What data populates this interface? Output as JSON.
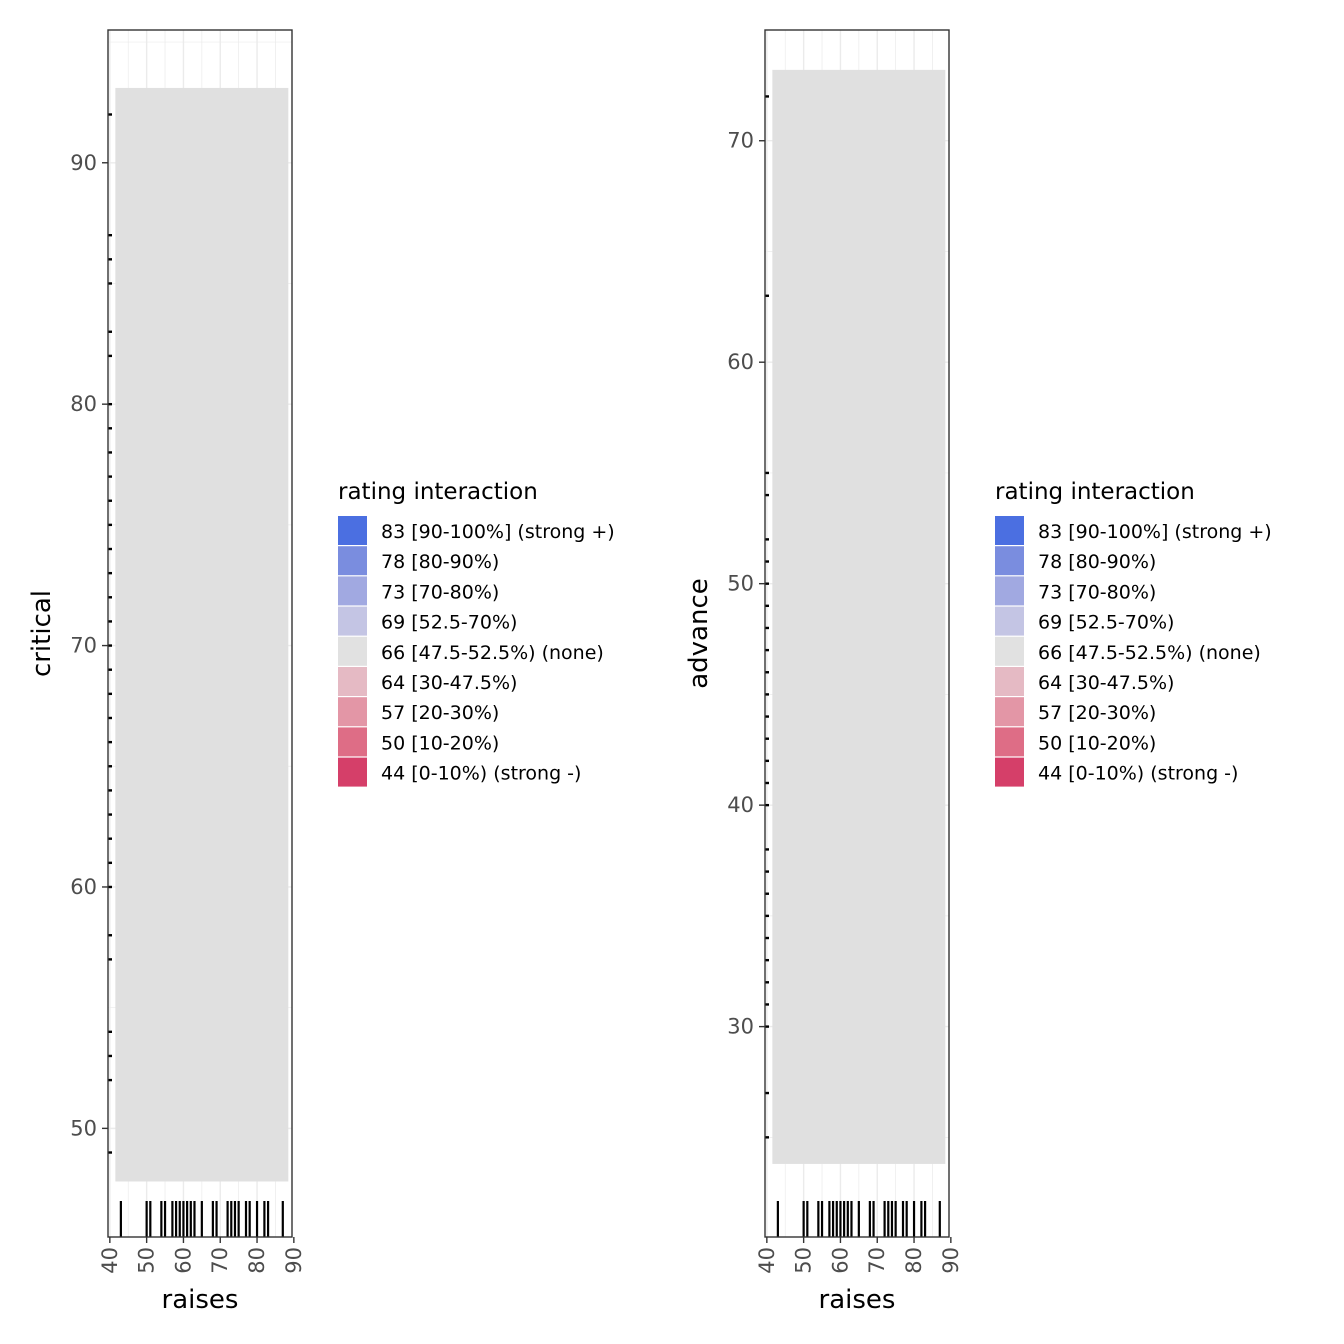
{
  "chart_data": [
    {
      "type": "heatmap",
      "xlabel": "raises",
      "ylabel": "critical",
      "xlim": [
        39.5,
        89.5
      ],
      "ylim": [
        45.5,
        95.5
      ],
      "xticks": [
        "40",
        "50",
        "60",
        "70",
        "80",
        "90"
      ],
      "yticks": [
        "50",
        "60",
        "70",
        "80",
        "90"
      ],
      "tile_x_range": [
        41.5,
        88.5
      ],
      "tile_y_range": [
        47.8,
        93.1
      ],
      "fill_value": 66,
      "fill_color": "#e0e0e0",
      "x_rug": [
        43,
        50,
        51,
        54,
        55,
        57,
        58,
        59,
        60,
        61,
        62,
        63,
        65,
        68,
        69,
        72,
        73,
        74,
        75,
        77,
        78,
        80,
        82,
        83,
        87
      ],
      "y_rug": [
        49,
        52,
        53,
        54,
        57,
        58,
        60,
        61,
        62,
        63,
        64,
        65,
        66,
        67,
        68,
        69,
        70,
        71,
        72,
        73,
        74,
        75,
        76,
        77,
        78,
        79,
        80,
        82,
        83,
        85,
        86,
        87,
        92
      ]
    },
    {
      "type": "heatmap",
      "xlabel": "raises",
      "ylabel": "advance",
      "xlim": [
        39.5,
        89.5
      ],
      "ylim": [
        20.5,
        75
      ],
      "xticks": [
        "40",
        "50",
        "60",
        "70",
        "80",
        "90"
      ],
      "yticks": [
        "30",
        "40",
        "50",
        "60",
        "70"
      ],
      "tile_x_range": [
        41.5,
        88.5
      ],
      "tile_y_range": [
        23.8,
        73.2
      ],
      "fill_value": 66,
      "fill_color": "#e0e0e0",
      "x_rug": [
        43,
        50,
        51,
        54,
        55,
        57,
        58,
        59,
        60,
        61,
        62,
        63,
        65,
        68,
        69,
        72,
        73,
        74,
        75,
        77,
        78,
        80,
        82,
        83,
        87
      ],
      "y_rug": [
        25,
        27,
        30,
        31,
        32,
        33,
        34,
        35,
        36,
        37,
        38,
        40,
        41,
        42,
        43,
        44,
        45,
        46,
        47,
        48,
        49,
        50,
        51,
        52,
        54,
        55,
        63,
        72
      ]
    }
  ],
  "legend": {
    "title": "rating interaction",
    "items": [
      {
        "label": "83 [90-100%] (strong +)",
        "color": "#4b6fe1"
      },
      {
        "label": "78 [80-90%)",
        "color": "#7a8ddf"
      },
      {
        "label": "73 [70-80%)",
        "color": "#a1a9e1"
      },
      {
        "label": "69 [52.5-70%)",
        "color": "#c4c5e4"
      },
      {
        "label": "66 [47.5-52.5%) (none)",
        "color": "#e1e1e1"
      },
      {
        "label": "64 [30-47.5%)",
        "color": "#e5bac4"
      },
      {
        "label": "57 [20-30%)",
        "color": "#e396a6"
      },
      {
        "label": "50 [10-20%)",
        "color": "#de6d86"
      },
      {
        "label": "44 [0-10%) (strong -)",
        "color": "#d53f69"
      }
    ]
  }
}
